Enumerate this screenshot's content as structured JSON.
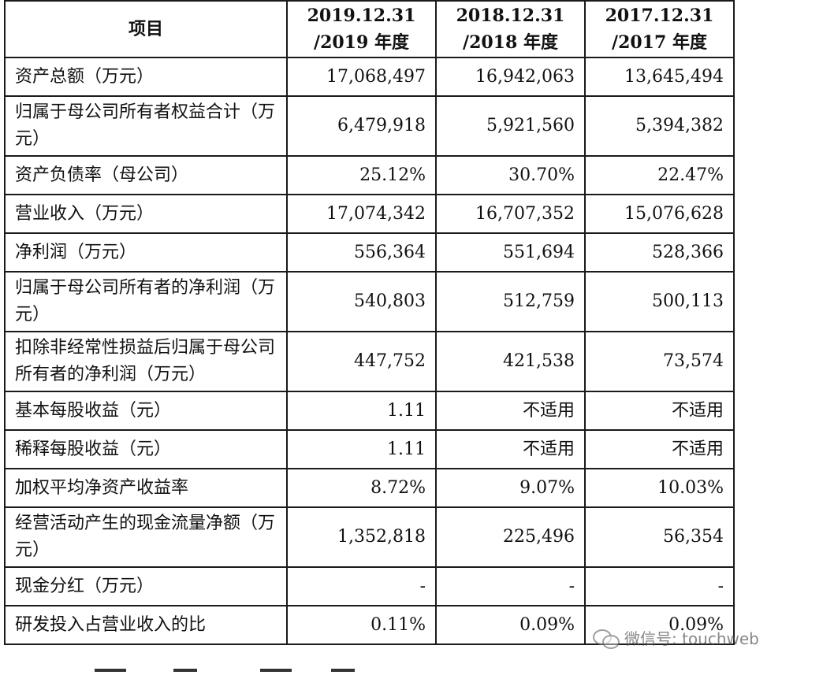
{
  "header": {
    "item": "项目",
    "col1_line1": "2019.12.31",
    "col1_line2": "/2019 年度",
    "col2_line1": "2018.12.31",
    "col2_line2": "/2018 年度",
    "col3_line1": "2017.12.31",
    "col3_line2": "/2017 年度"
  },
  "rows": [
    {
      "label": "资产总额（万元）",
      "v2019": "17,068,497",
      "v2018": "16,942,063",
      "v2017": "13,645,494"
    },
    {
      "label": "归属于母公司所有者权益合计（万元）",
      "v2019": "6,479,918",
      "v2018": "5,921,560",
      "v2017": "5,394,382"
    },
    {
      "label": "资产负债率（母公司）",
      "v2019": "25.12%",
      "v2018": "30.70%",
      "v2017": "22.47%"
    },
    {
      "label": "营业收入（万元）",
      "v2019": "17,074,342",
      "v2018": "16,707,352",
      "v2017": "15,076,628"
    },
    {
      "label": "净利润（万元）",
      "v2019": "556,364",
      "v2018": "551,694",
      "v2017": "528,366"
    },
    {
      "label": "归属于母公司所有者的净利润（万元）",
      "v2019": "540,803",
      "v2018": "512,759",
      "v2017": "500,113"
    },
    {
      "label": "扣除非经常性损益后归属于母公司所有者的净利润（万元）",
      "v2019": "447,752",
      "v2018": "421,538",
      "v2017": "73,574"
    },
    {
      "label": "基本每股收益（元）",
      "v2019": "1.11",
      "v2018": "不适用",
      "v2017": "不适用"
    },
    {
      "label": "稀释每股收益（元）",
      "v2019": "1.11",
      "v2018": "不适用",
      "v2017": "不适用"
    },
    {
      "label": "加权平均净资产收益率",
      "v2019": "8.72%",
      "v2018": "9.07%",
      "v2017": "10.03%"
    },
    {
      "label": "经营活动产生的现金流量净额（万元）",
      "v2019": "1,352,818",
      "v2018": "225,496",
      "v2017": "56,354"
    },
    {
      "label": "现金分红（万元）",
      "v2019": "-",
      "v2018": "-",
      "v2017": "-"
    },
    {
      "label": "研发投入占营业收入的比",
      "v2019": "0.11%",
      "v2018": "0.09%",
      "v2017": "0.09%"
    }
  ],
  "watermark": {
    "text": "微信号: touchweb",
    "icon": "wechat-icon"
  }
}
